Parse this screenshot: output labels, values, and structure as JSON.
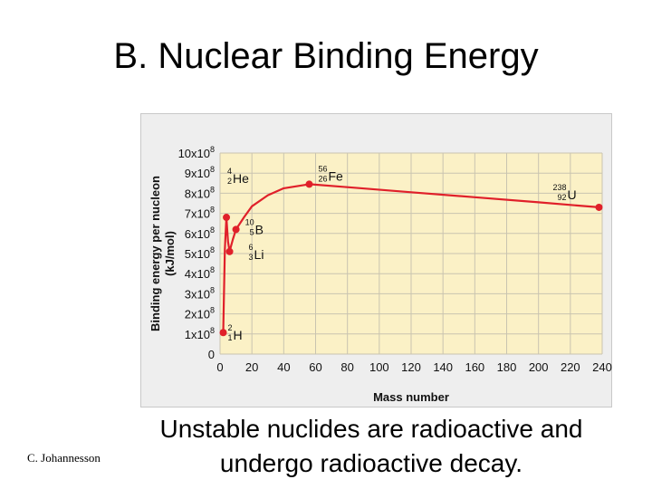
{
  "slide": {
    "title": "B. Nuclear Binding Energy",
    "caption_line1": "Unstable nuclides are radioactive and",
    "caption_line2": "undergo radioactive decay.",
    "credit": "C. Johannesson"
  },
  "colors": {
    "plot_background": "#fbf1c6",
    "grid": "#c9c4b0",
    "curve": "#e0202a",
    "panel": "#eeeeee"
  },
  "chart_data": {
    "type": "line",
    "xlabel": "Mass number",
    "ylabel_line1": "Binding energy per nucleon",
    "ylabel_line2": "(kJ/mol)",
    "xlim": [
      0,
      240
    ],
    "ylim": [
      0,
      1000000000
    ],
    "xticks": [
      0,
      20,
      40,
      60,
      80,
      100,
      120,
      140,
      160,
      180,
      200,
      220,
      240
    ],
    "yticks": [
      {
        "value": 0,
        "base": "0",
        "exp": ""
      },
      {
        "value": 100000000,
        "base": "1x10",
        "exp": "8"
      },
      {
        "value": 200000000,
        "base": "2x10",
        "exp": "8"
      },
      {
        "value": 300000000,
        "base": "3x10",
        "exp": "8"
      },
      {
        "value": 400000000,
        "base": "4x10",
        "exp": "8"
      },
      {
        "value": 500000000,
        "base": "5x10",
        "exp": "8"
      },
      {
        "value": 600000000,
        "base": "6x10",
        "exp": "8"
      },
      {
        "value": 700000000,
        "base": "7x10",
        "exp": "8"
      },
      {
        "value": 800000000,
        "base": "8x10",
        "exp": "8"
      },
      {
        "value": 900000000,
        "base": "9x10",
        "exp": "8"
      },
      {
        "value": 1000000000,
        "base": "10x10",
        "exp": "8"
      }
    ],
    "grid": true,
    "points": [
      {
        "mass": 2,
        "z": 1,
        "symbol": "H",
        "y": 107000000
      },
      {
        "mass": 4,
        "z": 2,
        "symbol": "He",
        "y": 680000000
      },
      {
        "mass": 6,
        "z": 3,
        "symbol": "Li",
        "y": 510000000
      },
      {
        "mass": 10,
        "z": 5,
        "symbol": "B",
        "y": 620000000
      },
      {
        "mass": 56,
        "z": 26,
        "symbol": "Fe",
        "y": 845000000
      },
      {
        "mass": 238,
        "z": 92,
        "symbol": "U",
        "y": 730000000
      }
    ],
    "curve": [
      [
        2,
        107000000
      ],
      [
        3,
        520000000
      ],
      [
        4,
        680000000
      ],
      [
        5,
        560000000
      ],
      [
        6,
        510000000
      ],
      [
        8,
        570000000
      ],
      [
        10,
        620000000
      ],
      [
        15,
        680000000
      ],
      [
        20,
        735000000
      ],
      [
        30,
        790000000
      ],
      [
        40,
        825000000
      ],
      [
        56,
        845000000
      ],
      [
        80,
        830000000
      ],
      [
        120,
        805000000
      ],
      [
        160,
        780000000
      ],
      [
        200,
        755000000
      ],
      [
        238,
        730000000
      ]
    ]
  }
}
